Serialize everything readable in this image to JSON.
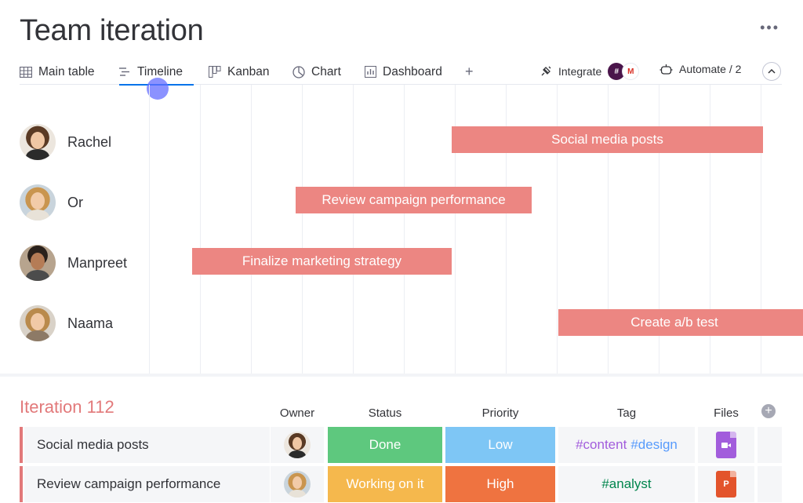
{
  "header": {
    "title": "Team iteration"
  },
  "tabs": [
    {
      "label": "Main table"
    },
    {
      "label": "Timeline"
    },
    {
      "label": "Kanban"
    },
    {
      "label": "Chart"
    },
    {
      "label": "Dashboard"
    }
  ],
  "toolbar": {
    "add": "+",
    "integrate": "Integrate",
    "automate": "Automate / 2",
    "more": "•••"
  },
  "integrations": [
    "slack-logo",
    "gmail-logo"
  ],
  "timeline": {
    "people": [
      "Rachel",
      "Or",
      "Manpreet",
      "Naama"
    ],
    "bars": [
      {
        "label": "Social media posts"
      },
      {
        "label": "Review campaign performance"
      },
      {
        "label": "Finalize marketing strategy"
      },
      {
        "label": "Create a/b test"
      }
    ]
  },
  "table": {
    "group_title": "Iteration 112",
    "columns": {
      "owner": "Owner",
      "status": "Status",
      "priority": "Priority",
      "tag": "Tag",
      "files": "Files"
    },
    "rows": [
      {
        "name": "Social media posts",
        "status": "Done",
        "priority": "Low",
        "tags": [
          "#content",
          "#design"
        ],
        "file": "video"
      },
      {
        "name": "Review campaign performance",
        "status": "Working on it",
        "priority": "High",
        "tags": [
          "#analyst"
        ],
        "file": "P"
      }
    ]
  },
  "colors": {
    "bar": "#ec8682",
    "group": "#e2797a",
    "done": "#5ec87e",
    "low": "#7ec6f5",
    "working": "#f5b84d",
    "high": "#ef7340",
    "video_file": "#a25ddc",
    "ppt_file": "#e3542c"
  }
}
